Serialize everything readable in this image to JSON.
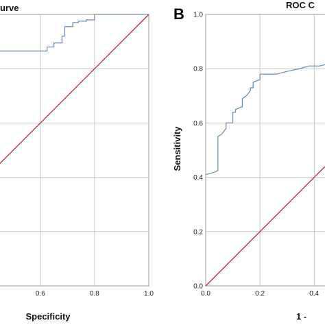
{
  "chart_data": [
    {
      "type": "line",
      "panel_letter": "",
      "title": "urve",
      "xlabel": "Specificity",
      "ylabel": "",
      "xlim": [
        0.35,
        1.0
      ],
      "ylim": [
        0.0,
        1.0
      ],
      "grid": true,
      "x_ticks": [
        "0.6",
        "0.8",
        "1.0"
      ],
      "y_ticks": [],
      "series": [
        {
          "role": "roc",
          "color": "#6f8fb8",
          "x": [
            0.35,
            0.38,
            0.45,
            0.6,
            0.625,
            0.625,
            0.65,
            0.65,
            0.68,
            0.68,
            0.69,
            0.69,
            0.72,
            0.72,
            0.74,
            0.74,
            0.77,
            0.77,
            0.8,
            0.8,
            1.0
          ],
          "y": [
            0.85,
            0.855,
            0.865,
            0.865,
            0.865,
            0.88,
            0.88,
            0.895,
            0.895,
            0.92,
            0.92,
            0.955,
            0.955,
            0.97,
            0.97,
            0.975,
            0.975,
            0.98,
            0.98,
            1.0,
            1.0
          ]
        },
        {
          "role": "reference",
          "color": "#c0283a",
          "x": [
            0.35,
            1.0
          ],
          "y": [
            0.35,
            1.0
          ]
        }
      ]
    },
    {
      "type": "line",
      "panel_letter": "B",
      "title": "ROC C",
      "xlabel": "1 - ",
      "ylabel": "Sensitivity",
      "xlim": [
        0.0,
        0.46
      ],
      "ylim": [
        0.0,
        1.0
      ],
      "grid": true,
      "x_ticks": [
        "0.0",
        "0.2",
        "0.4"
      ],
      "y_ticks": [
        "0.0",
        "0.2",
        "0.4",
        "0.6",
        "0.8",
        "1.0"
      ],
      "series": [
        {
          "role": "roc",
          "color": "#6f8fb8",
          "x": [
            0.0,
            0.02,
            0.035,
            0.045,
            0.045,
            0.06,
            0.075,
            0.075,
            0.1,
            0.1,
            0.11,
            0.11,
            0.135,
            0.135,
            0.15,
            0.165,
            0.165,
            0.175,
            0.175,
            0.2,
            0.2,
            0.26,
            0.3,
            0.345,
            0.38,
            0.42,
            0.46
          ],
          "y": [
            0.41,
            0.415,
            0.42,
            0.425,
            0.55,
            0.56,
            0.58,
            0.6,
            0.6,
            0.64,
            0.64,
            0.65,
            0.66,
            0.69,
            0.7,
            0.72,
            0.73,
            0.73,
            0.75,
            0.76,
            0.78,
            0.78,
            0.79,
            0.8,
            0.81,
            0.81,
            0.82
          ]
        },
        {
          "role": "reference",
          "color": "#c0283a",
          "x": [
            0.0,
            0.46
          ],
          "y": [
            0.0,
            0.46
          ]
        }
      ]
    }
  ]
}
